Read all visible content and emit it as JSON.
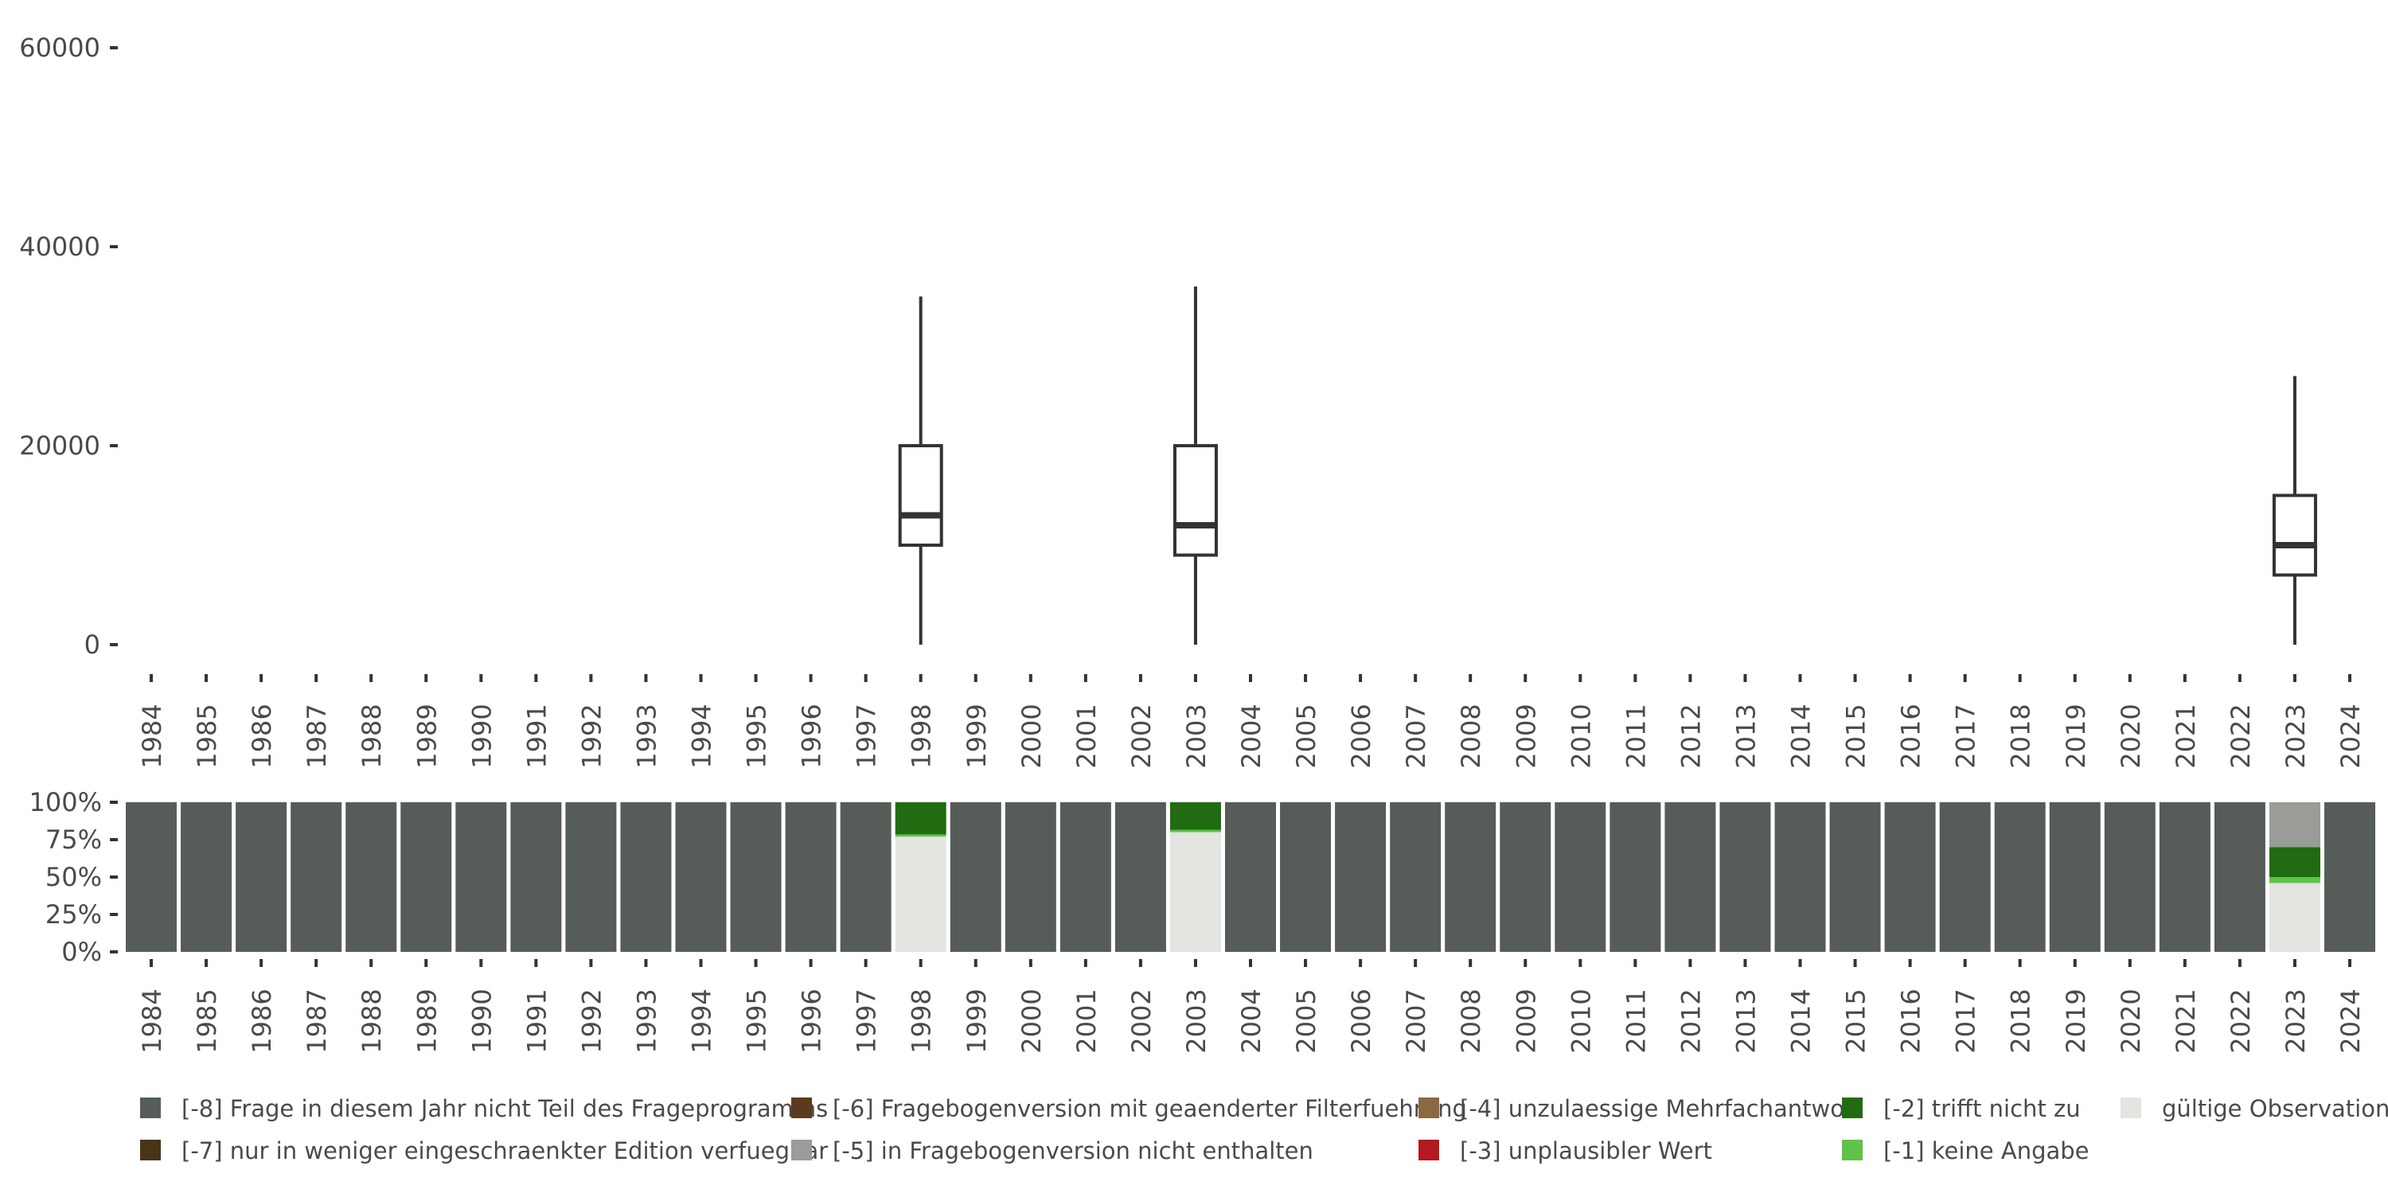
{
  "chart_data": [
    {
      "type": "boxplot",
      "x": [
        "1984",
        "1985",
        "1986",
        "1987",
        "1988",
        "1989",
        "1990",
        "1991",
        "1992",
        "1993",
        "1994",
        "1995",
        "1996",
        "1997",
        "1998",
        "1999",
        "2000",
        "2001",
        "2002",
        "2003",
        "2004",
        "2005",
        "2006",
        "2007",
        "2008",
        "2009",
        "2010",
        "2011",
        "2012",
        "2013",
        "2014",
        "2015",
        "2016",
        "2017",
        "2018",
        "2019",
        "2020",
        "2021",
        "2022",
        "2023",
        "2024"
      ],
      "ylim": [
        0,
        60000
      ],
      "yticks": [
        0,
        20000,
        40000,
        60000
      ],
      "grid": false,
      "boxes": [
        {
          "year": "1998",
          "min": 0,
          "q1": 10000,
          "median": 13000,
          "q3": 20000,
          "max": 35000
        },
        {
          "year": "2003",
          "min": 0,
          "q1": 9000,
          "median": 12000,
          "q3": 20000,
          "max": 36000
        },
        {
          "year": "2023",
          "min": 0,
          "q1": 7000,
          "median": 10000,
          "q3": 15000,
          "max": 27000
        }
      ]
    },
    {
      "type": "bar",
      "stacked": true,
      "normalized": true,
      "x": [
        "1984",
        "1985",
        "1986",
        "1987",
        "1988",
        "1989",
        "1990",
        "1991",
        "1992",
        "1993",
        "1994",
        "1995",
        "1996",
        "1997",
        "1998",
        "1999",
        "2000",
        "2001",
        "2002",
        "2003",
        "2004",
        "2005",
        "2006",
        "2007",
        "2008",
        "2009",
        "2010",
        "2011",
        "2012",
        "2013",
        "2014",
        "2015",
        "2016",
        "2017",
        "2018",
        "2019",
        "2020",
        "2021",
        "2022",
        "2023",
        "2024"
      ],
      "yticks": [
        "0%",
        "25%",
        "50%",
        "75%",
        "100%"
      ],
      "series": [
        {
          "name": "[-8] Frage in diesem Jahr nicht Teil des Frageprogramms",
          "color": "#565c58"
        },
        {
          "name": "[-7] nur in weniger eingeschraenkter Edition verfuegbar",
          "color": "#4a3418"
        },
        {
          "name": "[-6] Fragebogenversion mit geaenderter Filterfuehrung",
          "color": "#5b3a1e"
        },
        {
          "name": "[-5] in Fragebogenversion nicht enthalten",
          "color": "#9a9c98"
        },
        {
          "name": "[-4] unzulaessige Mehrfachantwort",
          "color": "#8c6840"
        },
        {
          "name": "[-3] unplausibler Wert",
          "color": "#b3191e"
        },
        {
          "name": "[-2] trifft nicht zu",
          "color": "#216b11"
        },
        {
          "name": "[-1] keine Angabe",
          "color": "#5fc34a"
        },
        {
          "name": "gültige Observationen",
          "color": "#e2e5e0"
        }
      ],
      "stack_order": [
        "gültige Observationen",
        "[-1] keine Angabe",
        "[-2] trifft nicht zu",
        "[-3] unplausibler Wert",
        "[-4] unzulaessige Mehrfachantwort",
        "[-5] in Fragebogenversion nicht enthalten",
        "[-6] Fragebogenversion mit geaenderter Filterfuehrung",
        "[-7] nur in weniger eingeschraenkter Edition verfuegbar",
        "[-8] Frage in diesem Jahr nicht Teil des Frageprogramms"
      ],
      "default_composition": {
        "[-8] Frage in diesem Jahr nicht Teil des Frageprogramms": 100
      },
      "compositions": {
        "1998": {
          "gültige Observationen": 77,
          "[-1] keine Angabe": 1.5,
          "[-2] trifft nicht zu": 21.5
        },
        "2003": {
          "gültige Observationen": 80,
          "[-1] keine Angabe": 1.5,
          "[-2] trifft nicht zu": 18.5
        },
        "2023": {
          "gültige Observationen": 46,
          "[-1] keine Angabe": 4,
          "[-2] trifft nicht zu": 20,
          "[-5] in Fragebogenversion nicht enthalten": 30
        }
      }
    }
  ],
  "legend": {
    "placement": "bottom",
    "columns": [
      [
        "[-8] Frage in diesem Jahr nicht Teil des Frageprogramms",
        "[-7] nur in weniger eingeschraenkter Edition verfuegbar"
      ],
      [
        "[-6] Fragebogenversion mit geaenderter Filterfuehrung",
        "[-5] in Fragebogenversion nicht enthalten"
      ],
      [
        "[-4] unzulaessige Mehrfachantwort",
        "[-3] unplausibler Wert"
      ],
      [
        "[-2] trifft nicht zu",
        "[-1] keine Angabe"
      ],
      [
        "gültige Observationen"
      ]
    ]
  },
  "colors": {
    "axis_text": "#4a4a4a",
    "box_stroke": "#333333",
    "tick": "#333333"
  }
}
